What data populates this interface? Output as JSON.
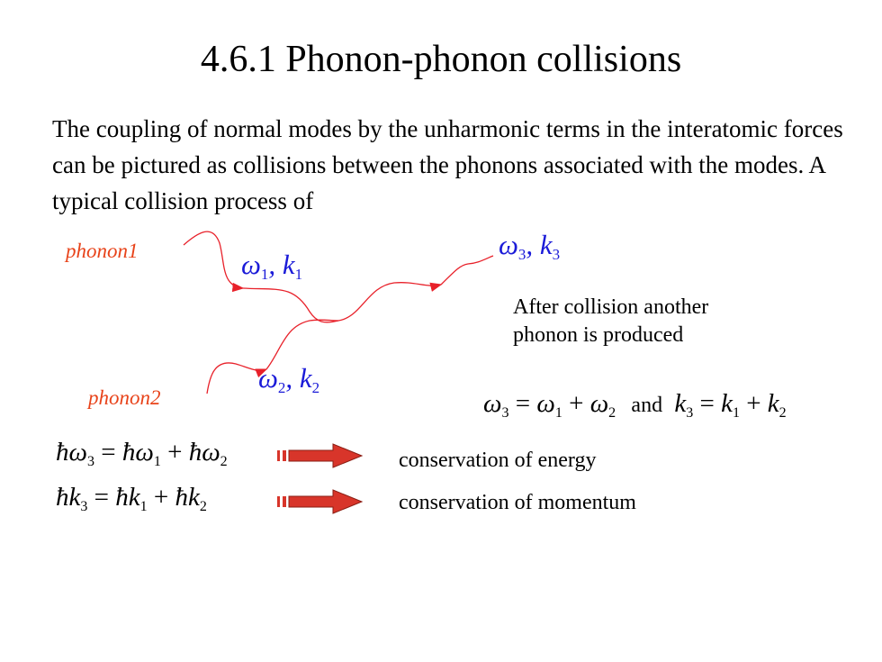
{
  "title": "4.6.1  Phonon-phonon collisions",
  "intro": "The coupling of  normal modes by the unharmonic  terms in the interatomic forces can be pictured as collisions between the phonons associated with the modes. A typical collision process of",
  "diagram": {
    "phonon1_label": "phonon1",
    "phonon2_label": "phonon2",
    "mode1": {
      "omega": "ω",
      "omega_sub": "1",
      "sep": ", ",
      "k": "k",
      "k_sub": "1"
    },
    "mode2": {
      "omega": "ω",
      "omega_sub": "2",
      "sep": ", ",
      "k": "k",
      "k_sub": "2"
    },
    "mode3": {
      "omega": "ω",
      "omega_sub": "3",
      "sep": ", ",
      "k": "k",
      "k_sub": "3"
    },
    "after_line1": "After collision another",
    "after_line2": "phonon is produced",
    "line_color": "#e8212a",
    "label_color": "#e8431a",
    "symbol_color": "#1b1bd8"
  },
  "relation": {
    "lhs1": "ω",
    "lhs1_sub": "3",
    "eq": " = ",
    "a": "ω",
    "a_sub": "1",
    "plus": " + ",
    "b": "ω",
    "b_sub": "2",
    "and": "and",
    "lhs2": "k",
    "lhs2_sub": "3",
    "c": "k",
    "c_sub": "1",
    "d": "k",
    "d_sub": "2"
  },
  "energy": {
    "hbar": "ħ",
    "sym3": "ω",
    "s3": "3",
    "eq": " = ",
    "sym1": "ω",
    "s1": "1",
    "plus": " + ",
    "sym2": "ω",
    "s2": "2",
    "label": "conservation  of energy"
  },
  "momentum": {
    "hbar": "ħ",
    "sym3": "k",
    "s3": "3",
    "eq": " = ",
    "sym1": "k",
    "s1": "1",
    "plus": " + ",
    "sym2": "k",
    "s2": "2",
    "label": "conservation  of momentum"
  },
  "arrow_color": "#d8352a"
}
